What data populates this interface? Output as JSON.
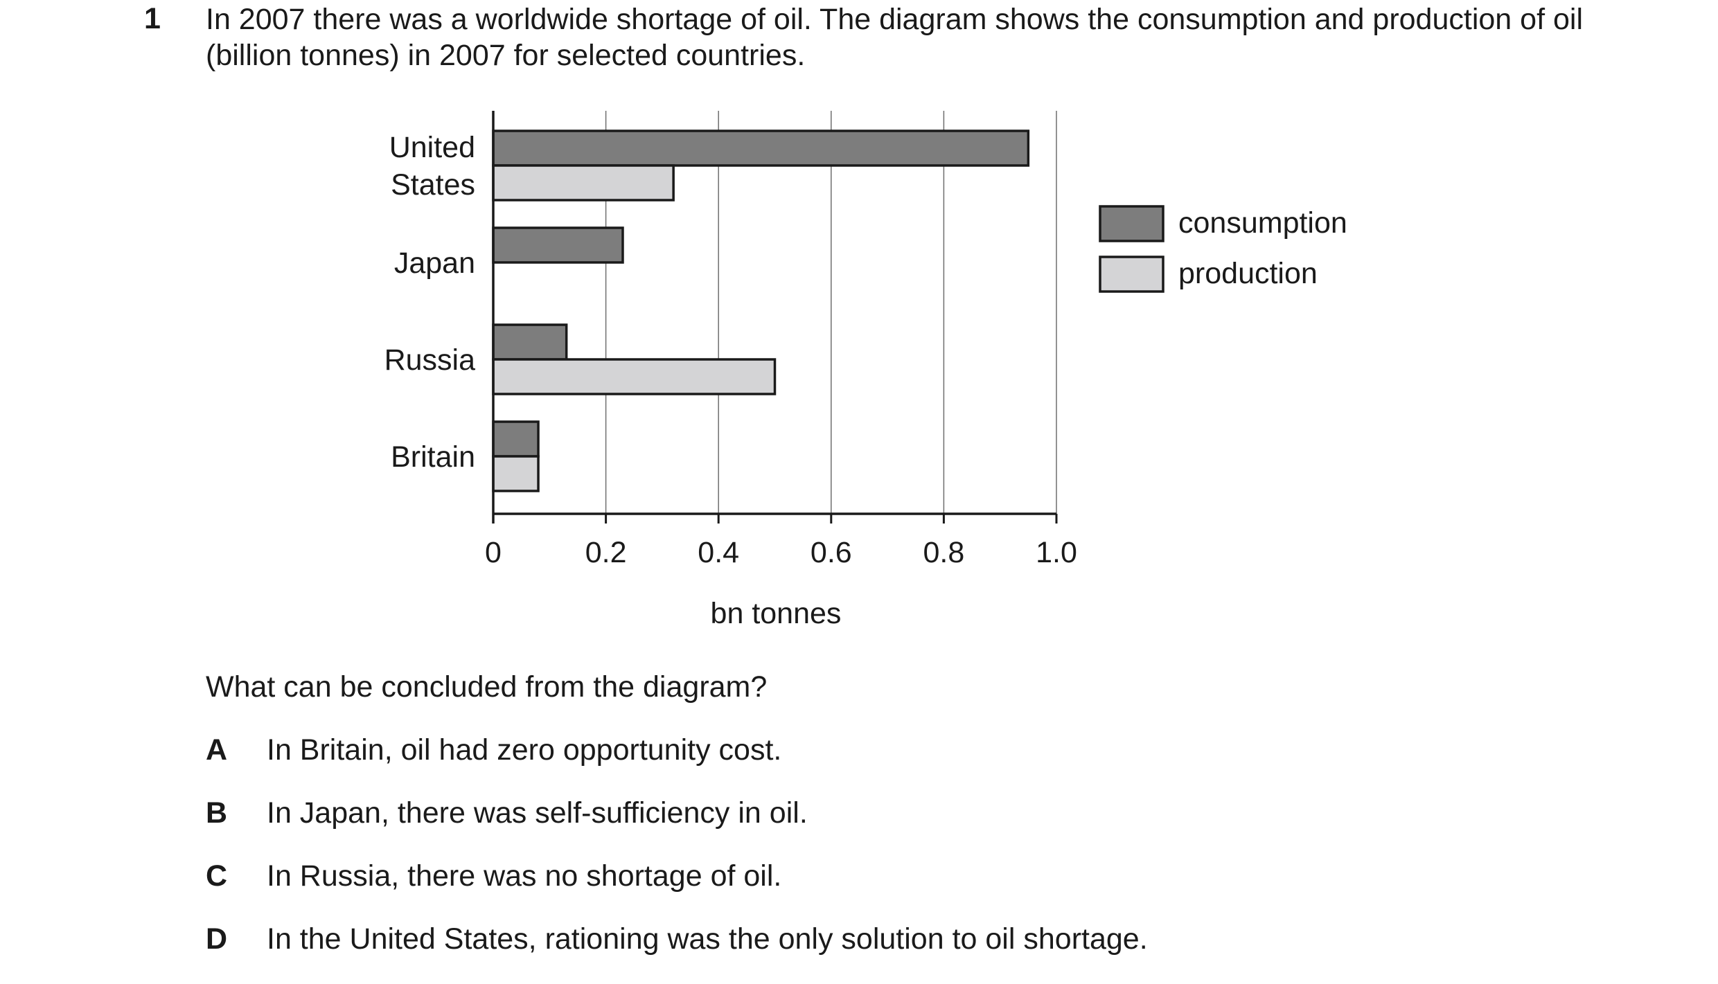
{
  "question": {
    "number": "1",
    "stem": "In 2007 there was a worldwide shortage of oil. The diagram shows the consumption and production of oil (billion tonnes) in 2007 for selected countries.",
    "prompt": "What can be concluded from the diagram?",
    "options": [
      {
        "letter": "A",
        "text": "In Britain, oil had zero opportunity cost."
      },
      {
        "letter": "B",
        "text": "In Japan, there was self-sufficiency in oil."
      },
      {
        "letter": "C",
        "text": "In Russia, there was no shortage of oil."
      },
      {
        "letter": "D",
        "text": "In the United States, rationing was the only solution to oil shortage."
      }
    ]
  },
  "chart_data": {
    "type": "bar",
    "orientation": "horizontal",
    "categories": [
      [
        "United",
        "States"
      ],
      [
        "Japan"
      ],
      [
        "Russia"
      ],
      [
        "Britain"
      ]
    ],
    "series": [
      {
        "name": "consumption",
        "values": [
          0.95,
          0.23,
          0.13,
          0.08
        ],
        "color": "#7d7d7d"
      },
      {
        "name": "production",
        "values": [
          0.32,
          0,
          0.5,
          0.08
        ],
        "color": "#d4d4d6"
      }
    ],
    "xlabel": "bn tonnes",
    "ylabel": "",
    "xlim": [
      0,
      1.0
    ],
    "xticks": [
      "0",
      "0.2",
      "0.4",
      "0.6",
      "0.8",
      "1.0"
    ],
    "grid": true,
    "legend_position": "right"
  }
}
